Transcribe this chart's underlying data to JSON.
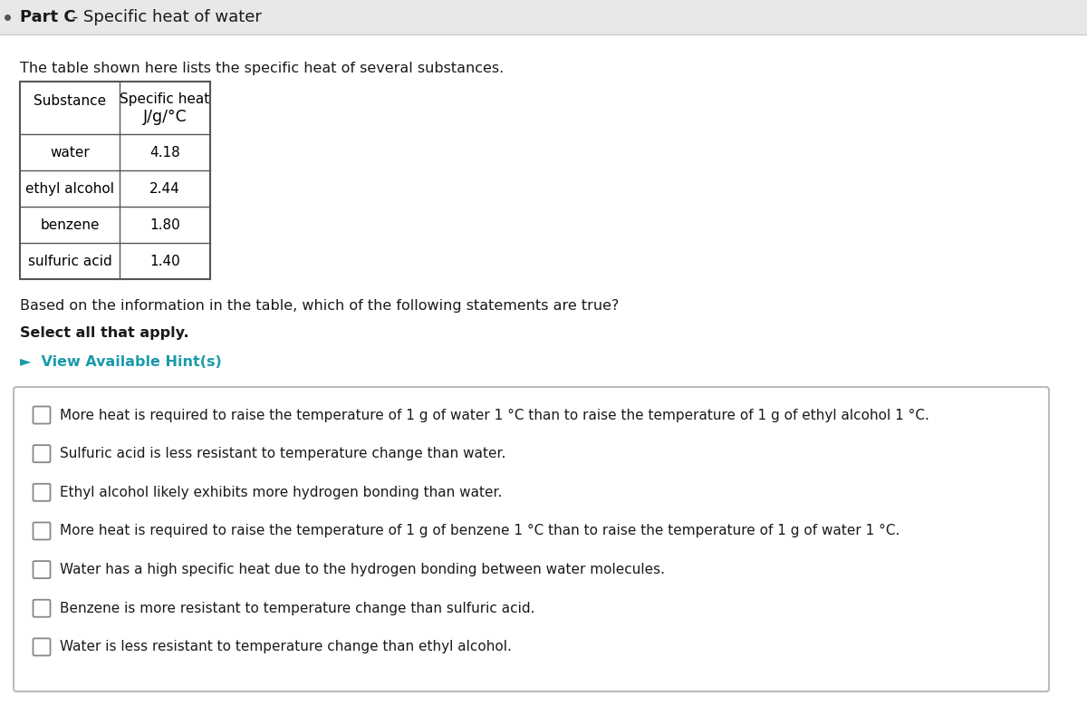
{
  "title_bold": "Part C",
  "title_normal": " - Specific heat of water",
  "intro_text": "The table shown here lists the specific heat of several substances.",
  "table_header_col1": "Substance",
  "table_header_col2_line1": "Specific heat",
  "table_header_col2_line2": "J/g/°C",
  "table_data": [
    [
      "water",
      "4.18"
    ],
    [
      "ethyl alcohol",
      "2.44"
    ],
    [
      "benzene",
      "1.80"
    ],
    [
      "sulfuric acid",
      "1.40"
    ]
  ],
  "question_text": "Based on the information in the table, which of the following statements are true?",
  "select_text": "Select all that apply.",
  "hint_text": "►  View Available Hint(s)",
  "hint_color": "#1a9aaa",
  "choices": [
    "More heat is required to raise the temperature of 1 g of water 1 °C than to raise the temperature of 1 g of ethyl alcohol 1 °C.",
    "Sulfuric acid is less resistant to temperature change than water.",
    "Ethyl alcohol likely exhibits more hydrogen bonding than water.",
    "More heat is required to raise the temperature of 1 g of benzene 1 °C than to raise the temperature of 1 g of water 1 °C.",
    "Water has a high specific heat due to the hydrogen bonding between water molecules.",
    "Benzene is more resistant to temperature change than sulfuric acid.",
    "Water is less resistant to temperature change than ethyl alcohol."
  ],
  "white": "#ffffff",
  "light_gray": "#eeeeee",
  "text_color": "#1a1a1a",
  "table_border": "#555555",
  "box_border": "#bbbbbb",
  "cb_border": "#888888",
  "top_bar_color": "#e8e8e8",
  "fig_w": 12.0,
  "fig_h": 7.79,
  "dpi": 100
}
